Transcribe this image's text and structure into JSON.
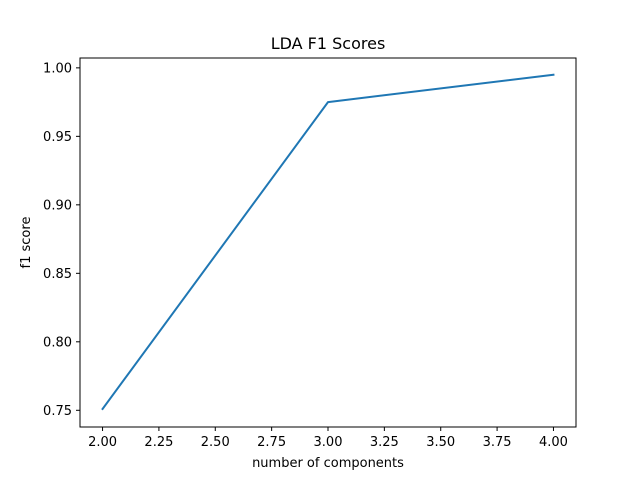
{
  "chart_data": {
    "type": "line",
    "title": "LDA F1 Scores",
    "xlabel": "number of components",
    "ylabel": "f1 score",
    "xlim": [
      1.9,
      4.1
    ],
    "ylim": [
      0.7378,
      1.0072
    ],
    "grid": false,
    "x_ticks": [
      2.0,
      2.25,
      2.5,
      2.75,
      3.0,
      3.25,
      3.5,
      3.75,
      4.0
    ],
    "x_tick_labels": [
      "2.00",
      "2.25",
      "2.50",
      "2.75",
      "3.00",
      "3.25",
      "3.50",
      "3.75",
      "4.00"
    ],
    "y_ticks": [
      0.75,
      0.8,
      0.85,
      0.9,
      0.95,
      1.0
    ],
    "y_tick_labels": [
      "0.75",
      "0.80",
      "0.85",
      "0.90",
      "0.95",
      "1.00"
    ],
    "series": [
      {
        "color": "#1f77b4",
        "x": [
          2,
          3,
          4
        ],
        "y": [
          0.751,
          0.975,
          0.995
        ]
      }
    ]
  }
}
